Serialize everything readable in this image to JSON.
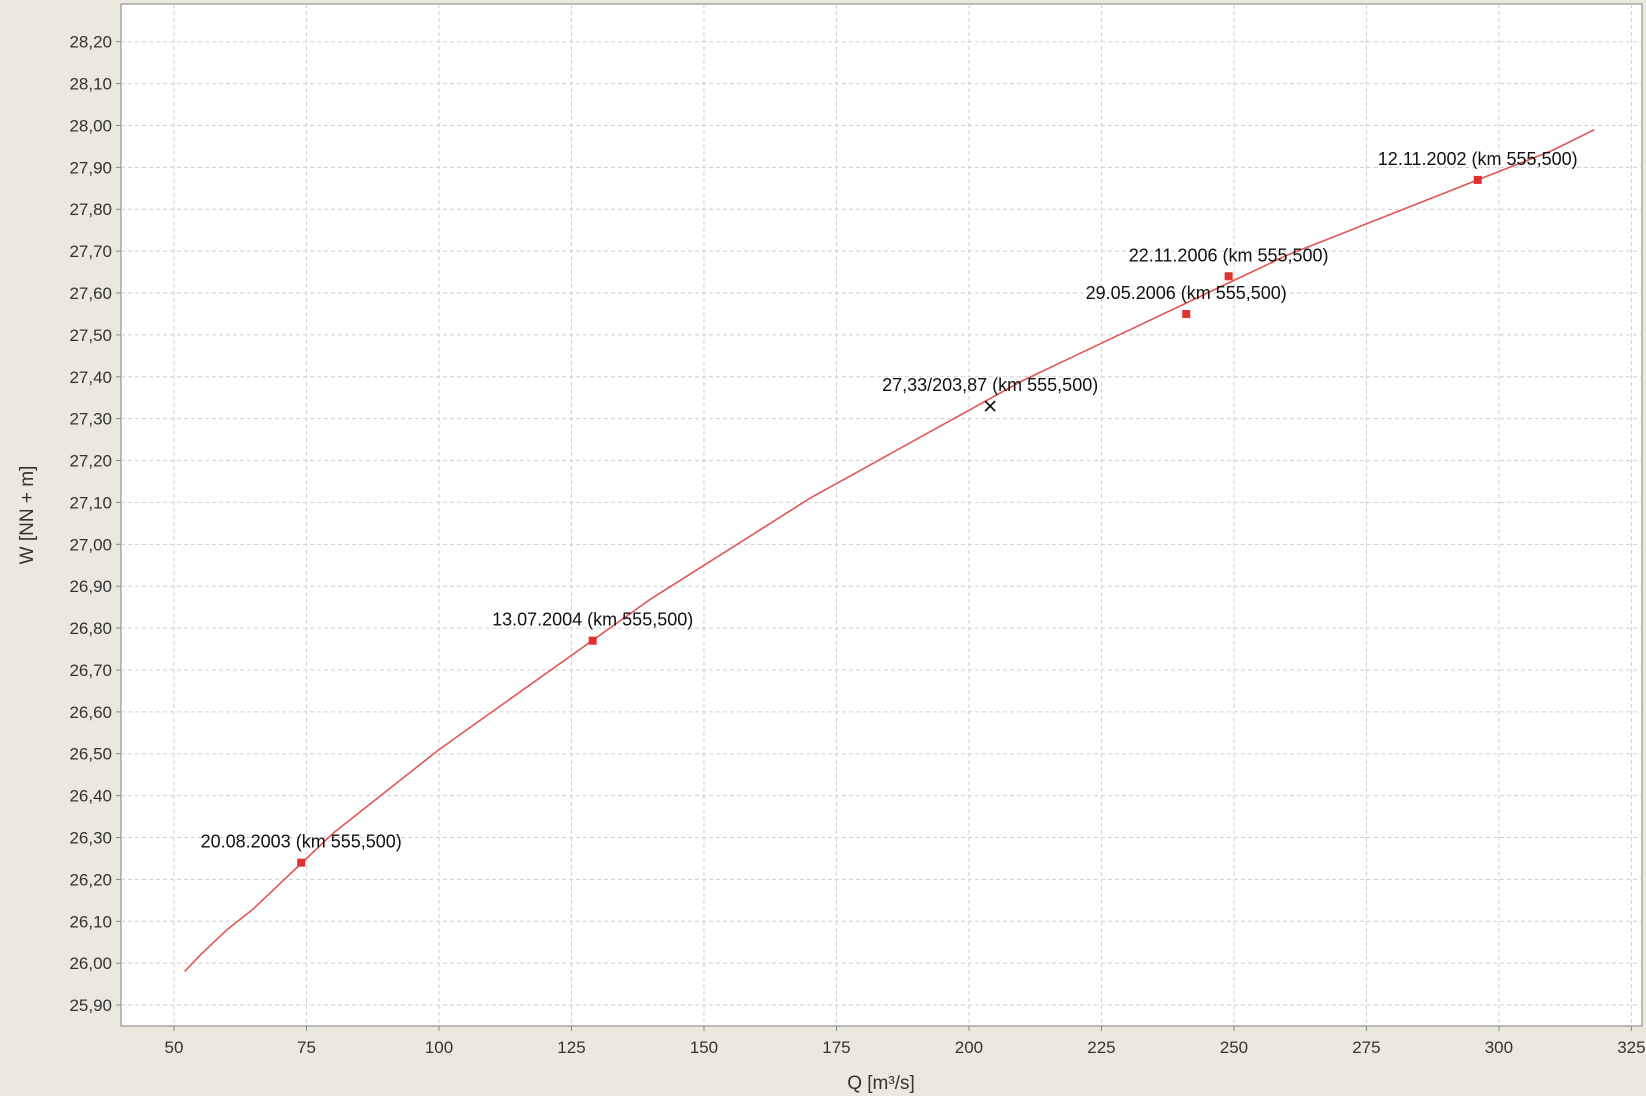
{
  "colors": {
    "background": "#ebe9dd",
    "plot_background": "#ffffff",
    "curve": "#e05555",
    "measurement_marker": "#e03030",
    "calculated_marker": "#000000",
    "grid": "#cfcfcf",
    "axis": "#808080"
  },
  "chart_data": {
    "type": "line",
    "xlabel": "Q [m³/s]",
    "ylabel": "W [NN + m]",
    "xlim": [
      40,
      327
    ],
    "ylim": [
      25.85,
      28.29
    ],
    "x_ticks": [
      50,
      75,
      100,
      125,
      150,
      175,
      200,
      225,
      250,
      275,
      300,
      325
    ],
    "y_ticks": [
      25.9,
      26.0,
      26.1,
      26.2,
      26.3,
      26.4,
      26.5,
      26.6,
      26.7,
      26.8,
      26.9,
      27.0,
      27.1,
      27.2,
      27.3,
      27.4,
      27.5,
      27.6,
      27.7,
      27.8,
      27.9,
      28.0,
      28.1,
      28.2
    ],
    "decimal_separator": ",",
    "grid": true,
    "legend": "none",
    "series": [
      {
        "type": "line",
        "color": "#e05555",
        "x": [
          52,
          55,
          60,
          65,
          70,
          75,
          80,
          85,
          90,
          95,
          100,
          110,
          120,
          130,
          140,
          150,
          160,
          170,
          180,
          190,
          200,
          210,
          220,
          230,
          240,
          250,
          260,
          270,
          280,
          290,
          300,
          310,
          318
        ],
        "y": [
          25.98,
          26.02,
          26.08,
          26.13,
          26.19,
          26.25,
          26.31,
          26.36,
          26.41,
          26.46,
          26.51,
          26.6,
          26.69,
          26.78,
          26.87,
          26.95,
          27.03,
          27.11,
          27.18,
          27.25,
          27.32,
          27.39,
          27.45,
          27.51,
          27.57,
          27.63,
          27.69,
          27.74,
          27.79,
          27.84,
          27.89,
          27.94,
          27.99
        ]
      }
    ],
    "points": [
      {
        "x": 74,
        "y": 26.24,
        "label": "20.08.2003 (km 555,500)",
        "marker": "square",
        "color": "#e03030"
      },
      {
        "x": 129,
        "y": 26.77,
        "label": "13.07.2004 (km 555,500)",
        "marker": "square",
        "color": "#e03030"
      },
      {
        "x": 204,
        "y": 27.33,
        "label": "27,33/203,87 (km 555,500)",
        "marker": "cross",
        "color": "#000000"
      },
      {
        "x": 241,
        "y": 27.55,
        "label": "29.05.2006 (km 555,500)",
        "marker": "square",
        "color": "#e03030"
      },
      {
        "x": 249,
        "y": 27.64,
        "label": "22.11.2006 (km 555,500)",
        "marker": "square",
        "color": "#e03030"
      },
      {
        "x": 296,
        "y": 27.87,
        "label": "12.11.2002 (km 555,500)",
        "marker": "square",
        "color": "#e03030"
      }
    ]
  }
}
